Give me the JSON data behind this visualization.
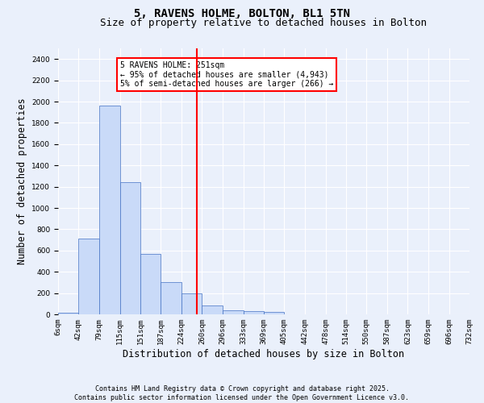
{
  "title": "5, RAVENS HOLME, BOLTON, BL1 5TN",
  "subtitle": "Size of property relative to detached houses in Bolton",
  "xlabel": "Distribution of detached houses by size in Bolton",
  "ylabel": "Number of detached properties",
  "bar_color": "#c9daf8",
  "bar_edge_color": "#4472c4",
  "bg_color": "#eaf0fb",
  "grid_color": "#ffffff",
  "vline_x": 251,
  "vline_color": "red",
  "annotation_text": "5 RAVENS HOLME: 251sqm\n← 95% of detached houses are smaller (4,943)\n5% of semi-detached houses are larger (266) →",
  "bin_edges": [
    6,
    42,
    79,
    115,
    151,
    187,
    224,
    260,
    296,
    333,
    369,
    405,
    442,
    478,
    514,
    550,
    587,
    623,
    659,
    696,
    732
  ],
  "bar_heights": [
    15,
    710,
    1960,
    1240,
    570,
    305,
    200,
    80,
    40,
    30,
    20,
    0,
    0,
    0,
    0,
    0,
    0,
    0,
    0,
    0
  ],
  "ylim": [
    0,
    2500
  ],
  "yticks": [
    0,
    200,
    400,
    600,
    800,
    1000,
    1200,
    1400,
    1600,
    1800,
    2000,
    2200,
    2400
  ],
  "footnote": "Contains HM Land Registry data © Crown copyright and database right 2025.\nContains public sector information licensed under the Open Government Licence v3.0.",
  "title_fontsize": 10,
  "subtitle_fontsize": 9,
  "tick_fontsize": 6.5,
  "label_fontsize": 8.5
}
